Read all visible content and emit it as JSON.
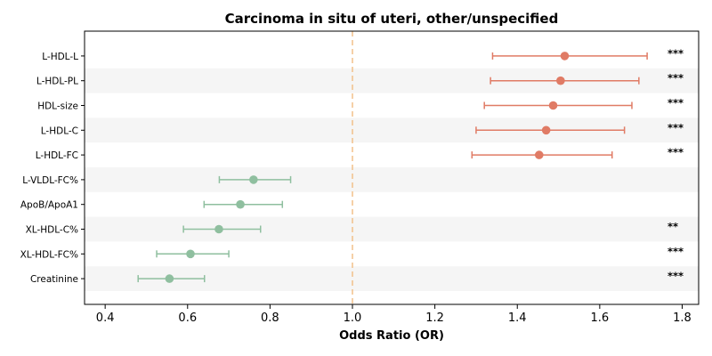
{
  "chart_data": {
    "type": "forest",
    "title": "Carcinoma in situ of uteri, other/unspecified",
    "xlabel": "Odds Ratio (OR)",
    "xlim": [
      0.35,
      1.84
    ],
    "xticks": [
      0.4,
      0.6,
      0.8,
      1.0,
      1.2,
      1.4,
      1.6,
      1.8
    ],
    "xtick_labels": [
      "0.4",
      "0.6",
      "0.8",
      "1.0",
      "1.2",
      "1.4",
      "1.6",
      "1.8"
    ],
    "reference_line": 1.0,
    "row_shading": "alternating",
    "rows": [
      {
        "label": "L-HDL-L",
        "or": 1.515,
        "lo": 1.34,
        "hi": 1.715,
        "sig": "***",
        "direction": "up"
      },
      {
        "label": "L-HDL-PL",
        "or": 1.505,
        "lo": 1.335,
        "hi": 1.695,
        "sig": "***",
        "direction": "up"
      },
      {
        "label": "HDL-size",
        "or": 1.487,
        "lo": 1.32,
        "hi": 1.678,
        "sig": "***",
        "direction": "up"
      },
      {
        "label": "L-HDL-C",
        "or": 1.47,
        "lo": 1.3,
        "hi": 1.66,
        "sig": "***",
        "direction": "up"
      },
      {
        "label": "L-HDL-FC",
        "or": 1.453,
        "lo": 1.29,
        "hi": 1.63,
        "sig": "***",
        "direction": "up"
      },
      {
        "label": "L-VLDL-FC%",
        "or": 0.76,
        "lo": 0.677,
        "hi": 0.85,
        "sig": "",
        "direction": "down"
      },
      {
        "label": "ApoB/ApoA1",
        "or": 0.728,
        "lo": 0.64,
        "hi": 0.83,
        "sig": "",
        "direction": "down"
      },
      {
        "label": "XL-HDL-C%",
        "or": 0.676,
        "lo": 0.59,
        "hi": 0.777,
        "sig": "**",
        "direction": "down"
      },
      {
        "label": "XL-HDL-FC%",
        "or": 0.607,
        "lo": 0.525,
        "hi": 0.7,
        "sig": "***",
        "direction": "down"
      },
      {
        "label": "Creatinine",
        "or": 0.556,
        "lo": 0.48,
        "hi": 0.641,
        "sig": "***",
        "direction": "down"
      }
    ],
    "colors": {
      "up": "#e07b65",
      "down": "#8fbf9f",
      "reference": "#f2c08a",
      "shade": "#f5f5f5",
      "axis": "#000000"
    }
  }
}
